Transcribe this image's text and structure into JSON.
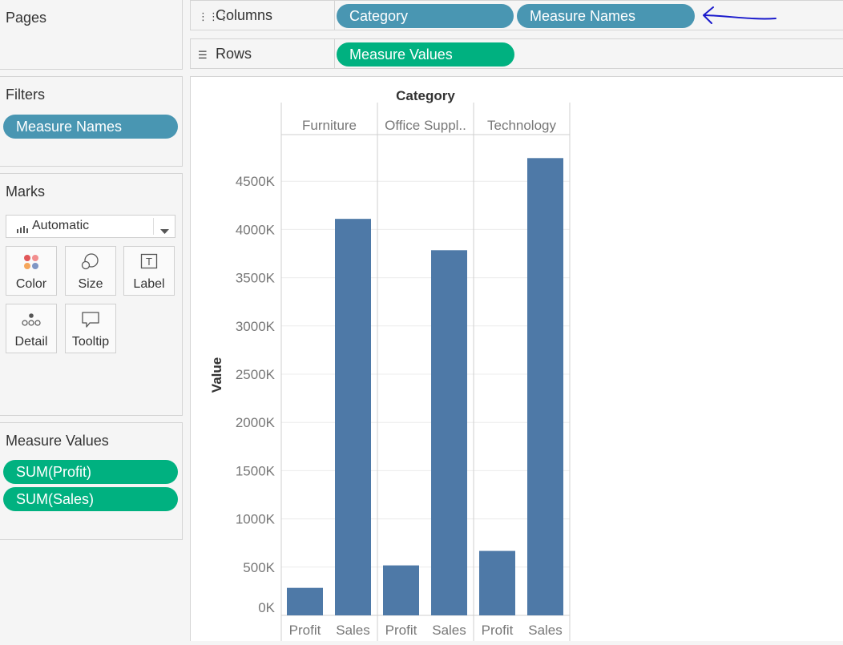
{
  "pages": {
    "title": "Pages"
  },
  "shelves": {
    "columns": {
      "label": "Columns",
      "icon": "columns-icon",
      "pills": [
        "Category",
        "Measure Names"
      ]
    },
    "rows": {
      "label": "Rows",
      "icon": "rows-icon",
      "pills": [
        "Measure Values"
      ]
    }
  },
  "filters": {
    "title": "Filters",
    "pills": [
      "Measure Names"
    ]
  },
  "marks": {
    "title": "Marks",
    "mark_type": "Automatic",
    "buttons": [
      {
        "label": "Color",
        "icon": "color-icon"
      },
      {
        "label": "Size",
        "icon": "size-icon"
      },
      {
        "label": "Label",
        "icon": "label-icon"
      },
      {
        "label": "Detail",
        "icon": "detail-icon"
      },
      {
        "label": "Tooltip",
        "icon": "tooltip-icon"
      }
    ]
  },
  "measure_values": {
    "title": "Measure Values",
    "pills": [
      "SUM(Profit)",
      "SUM(Sales)"
    ]
  },
  "colors": {
    "dimension_pill": "#4996b2",
    "measure_pill": "#00b180",
    "bar": "#4e79a7",
    "annotation_arrow": "#1a1acc"
  },
  "chart_data": {
    "type": "bar",
    "title": "Category",
    "ylabel": "Value",
    "xlabel": "",
    "panes": [
      "Furniture",
      "Office Suppl..",
      "Technology"
    ],
    "categories": [
      "Profit",
      "Sales"
    ],
    "series": [
      {
        "pane": "Furniture",
        "values": [
          285000,
          4110000
        ]
      },
      {
        "pane": "Office Suppl..",
        "values": [
          518000,
          3785000
        ]
      },
      {
        "pane": "Technology",
        "values": [
          668000,
          4740000
        ]
      }
    ],
    "yticks": [
      0,
      500000,
      1000000,
      1500000,
      2000000,
      2500000,
      3000000,
      3500000,
      4000000,
      4500000
    ],
    "ytick_labels": [
      "0K",
      "500K",
      "1000K",
      "1500K",
      "2000K",
      "2500K",
      "3000K",
      "3500K",
      "4000K",
      "4500K"
    ],
    "ylim": [
      0,
      5000000
    ],
    "grid": true
  }
}
